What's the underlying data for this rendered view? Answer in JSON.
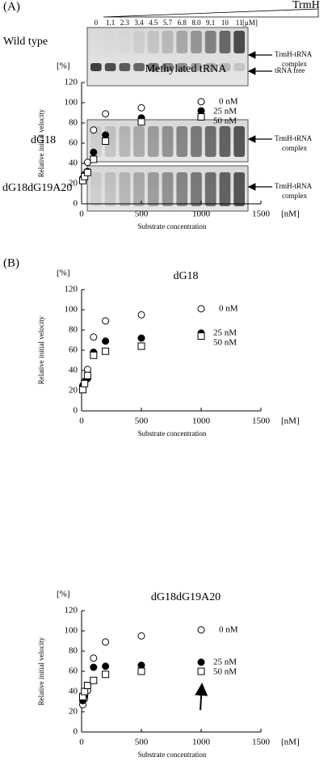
{
  "panel_a": {
    "label": "(A)",
    "protein": "TrmH",
    "unit": "[μM]",
    "concentrations": [
      "0",
      "1.1",
      "2.3",
      "3.4",
      "4.5",
      "5.7",
      "6.8",
      "8.0",
      "9.1",
      "10",
      "11"
    ],
    "gels": [
      {
        "name": "Wild type",
        "annotations": [
          {
            "lines": [
              "TrmH-tRNA",
              "complex"
            ]
          },
          {
            "lines": [
              "tRNA free"
            ]
          }
        ]
      },
      {
        "name": "dG18",
        "annotations": [
          {
            "lines": [
              "TrmH-tRNA",
              "complex"
            ]
          }
        ]
      },
      {
        "name": "dG18dG19A20",
        "annotations": [
          {
            "lines": [
              "TrmH-tRNA",
              "complex"
            ]
          }
        ]
      }
    ]
  },
  "panel_b_label": "(B)",
  "chart_data": [
    {
      "type": "scatter",
      "title": "Methylated tRNA",
      "x_label": "Substrate concentration",
      "y_label": "Relative initial velocity",
      "x_unit": "[nM]",
      "y_unit": "[%]",
      "x": [
        10,
        25,
        50,
        100,
        200,
        500,
        1000
      ],
      "xlim": [
        0,
        1500
      ],
      "ylim": [
        0,
        120
      ],
      "xticks": [
        0,
        500,
        1000,
        1500
      ],
      "yticks": [
        0,
        20,
        40,
        60,
        80,
        100,
        120
      ],
      "series": [
        {
          "name": "0 nM",
          "marker": "open-circle",
          "color": "#000000",
          "values": [
            25,
            29,
            41,
            73,
            89,
            95,
            101
          ]
        },
        {
          "name": "25 nM",
          "marker": "filled-circle",
          "color": "#000000",
          "values": [
            24,
            28,
            32,
            51,
            68,
            85,
            92
          ]
        },
        {
          "name": "50 nM",
          "marker": "open-square",
          "color": "#000000",
          "values": [
            23,
            27,
            31,
            44,
            62,
            81,
            86
          ]
        }
      ]
    },
    {
      "type": "scatter",
      "title": "dG18",
      "x_label": "Substrate concentration",
      "y_label": "Relative initial velocity",
      "x_unit": "[nM]",
      "y_unit": "[%]",
      "x": [
        10,
        25,
        50,
        100,
        200,
        500,
        1000
      ],
      "xlim": [
        0,
        1500
      ],
      "ylim": [
        0,
        120
      ],
      "xticks": [
        0,
        500,
        1000,
        1500
      ],
      "yticks": [
        0,
        20,
        40,
        60,
        80,
        100,
        120
      ],
      "series": [
        {
          "name": "0 nM",
          "marker": "open-circle",
          "color": "#000000",
          "values": [
            22,
            28,
            41,
            73,
            89,
            95,
            101
          ]
        },
        {
          "name": "25 nM",
          "marker": "filled-circle",
          "color": "#000000",
          "values": [
            25,
            29,
            32,
            58,
            69,
            72,
            77
          ]
        },
        {
          "name": "50 nM",
          "marker": "open-square",
          "color": "#000000",
          "values": [
            21,
            27,
            35,
            55,
            59,
            64,
            74
          ]
        }
      ]
    },
    {
      "type": "scatter",
      "title": "dG18dG19A20",
      "x_label": "Substrate concentration",
      "y_label": "Relative initial velocity",
      "x_unit": "[nM]",
      "y_unit": "[%]",
      "x": [
        10,
        25,
        50,
        100,
        200,
        500,
        1000
      ],
      "xlim": [
        0,
        1500
      ],
      "ylim": [
        0,
        120
      ],
      "xticks": [
        0,
        500,
        1000,
        1500
      ],
      "yticks": [
        0,
        20,
        40,
        60,
        80,
        100,
        120
      ],
      "series": [
        {
          "name": "0 nM",
          "marker": "open-circle",
          "color": "#000000",
          "values": [
            27,
            33,
            41,
            73,
            89,
            95,
            101
          ]
        },
        {
          "name": "25 nM",
          "marker": "filled-circle",
          "color": "#000000",
          "values": [
            31,
            36,
            46,
            64,
            65,
            66,
            69
          ]
        },
        {
          "name": "50 nM",
          "marker": "open-square",
          "color": "#000000",
          "values": [
            35,
            40,
            46,
            51,
            57,
            60,
            60
          ]
        }
      ]
    }
  ]
}
